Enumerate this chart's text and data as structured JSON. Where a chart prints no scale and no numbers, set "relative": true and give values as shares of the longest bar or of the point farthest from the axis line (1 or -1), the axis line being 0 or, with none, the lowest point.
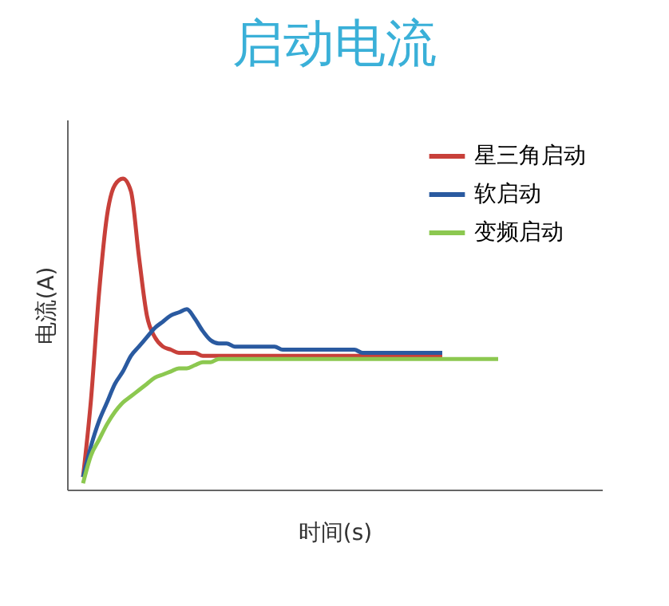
{
  "chart_data": {
    "type": "line",
    "title": "启动电流",
    "xlabel": "时间(s)",
    "ylabel": "电流(A)",
    "relative": true,
    "legend": "top right",
    "grid": false,
    "marker": "none",
    "line_style": "solid",
    "categories": [
      null,
      null,
      null,
      null,
      null,
      null,
      null,
      null,
      null,
      null,
      null,
      null,
      null,
      null,
      null,
      null,
      null,
      null,
      null,
      null,
      null,
      null,
      null,
      null,
      null,
      null,
      null,
      null,
      null,
      null,
      null,
      null,
      null,
      null,
      null,
      null,
      null,
      null,
      null,
      null,
      null,
      null,
      null,
      null,
      null,
      null,
      null,
      null,
      null,
      null,
      null,
      null,
      null
    ],
    "series": [
      {
        "name": "星三角启动",
        "color": "#c8403a",
        "values": [
          0.04,
          0.29,
          0.63,
          0.88,
          0.98,
          1,
          0.96,
          0.75,
          0.56,
          0.49,
          0.46,
          0.45,
          0.44,
          0.44,
          0.44,
          0.43,
          0.43,
          0.43,
          0.43,
          0.43,
          0.43,
          0.43,
          0.43,
          0.43,
          0.43,
          0.43,
          0.43,
          0.43,
          0.43,
          0.43,
          0.43,
          0.43,
          0.43,
          0.43,
          0.43,
          0.43,
          0.43,
          0.43,
          0.43,
          0.43,
          0.43,
          0.43,
          0.43,
          0.43,
          0.43,
          0.43,
          null,
          null,
          null,
          null,
          null,
          null,
          null
        ]
      },
      {
        "name": "软启动",
        "color": "#2a5aa0",
        "values": [
          0.04,
          0.14,
          0.22,
          0.28,
          0.34,
          0.38,
          0.43,
          0.46,
          0.49,
          0.52,
          0.54,
          0.56,
          0.57,
          0.58,
          0.55,
          0.51,
          0.48,
          0.47,
          0.47,
          0.46,
          0.46,
          0.46,
          0.46,
          0.46,
          0.46,
          0.45,
          0.45,
          0.45,
          0.45,
          0.45,
          0.45,
          0.45,
          0.45,
          0.45,
          0.45,
          0.44,
          0.44,
          0.44,
          0.44,
          0.44,
          0.44,
          0.44,
          0.44,
          0.44,
          0.44,
          0.44,
          null,
          null,
          null,
          null,
          null,
          null,
          null
        ]
      },
      {
        "name": "变频启动",
        "color": "#8cc850",
        "values": [
          0.02,
          0.11,
          0.16,
          0.21,
          0.25,
          0.28,
          0.3,
          0.32,
          0.34,
          0.36,
          0.37,
          0.38,
          0.39,
          0.39,
          0.4,
          0.41,
          0.41,
          0.42,
          0.42,
          0.42,
          0.42,
          0.42,
          0.42,
          0.42,
          0.42,
          0.42,
          0.42,
          0.42,
          0.42,
          0.42,
          0.42,
          0.42,
          0.42,
          0.42,
          0.42,
          0.42,
          0.42,
          0.42,
          0.42,
          0.42,
          0.42,
          0.42,
          0.42,
          0.42,
          0.42,
          0.42,
          0.42,
          0.42,
          0.42,
          0.42,
          0.42,
          0.42,
          0.42
        ]
      }
    ]
  }
}
